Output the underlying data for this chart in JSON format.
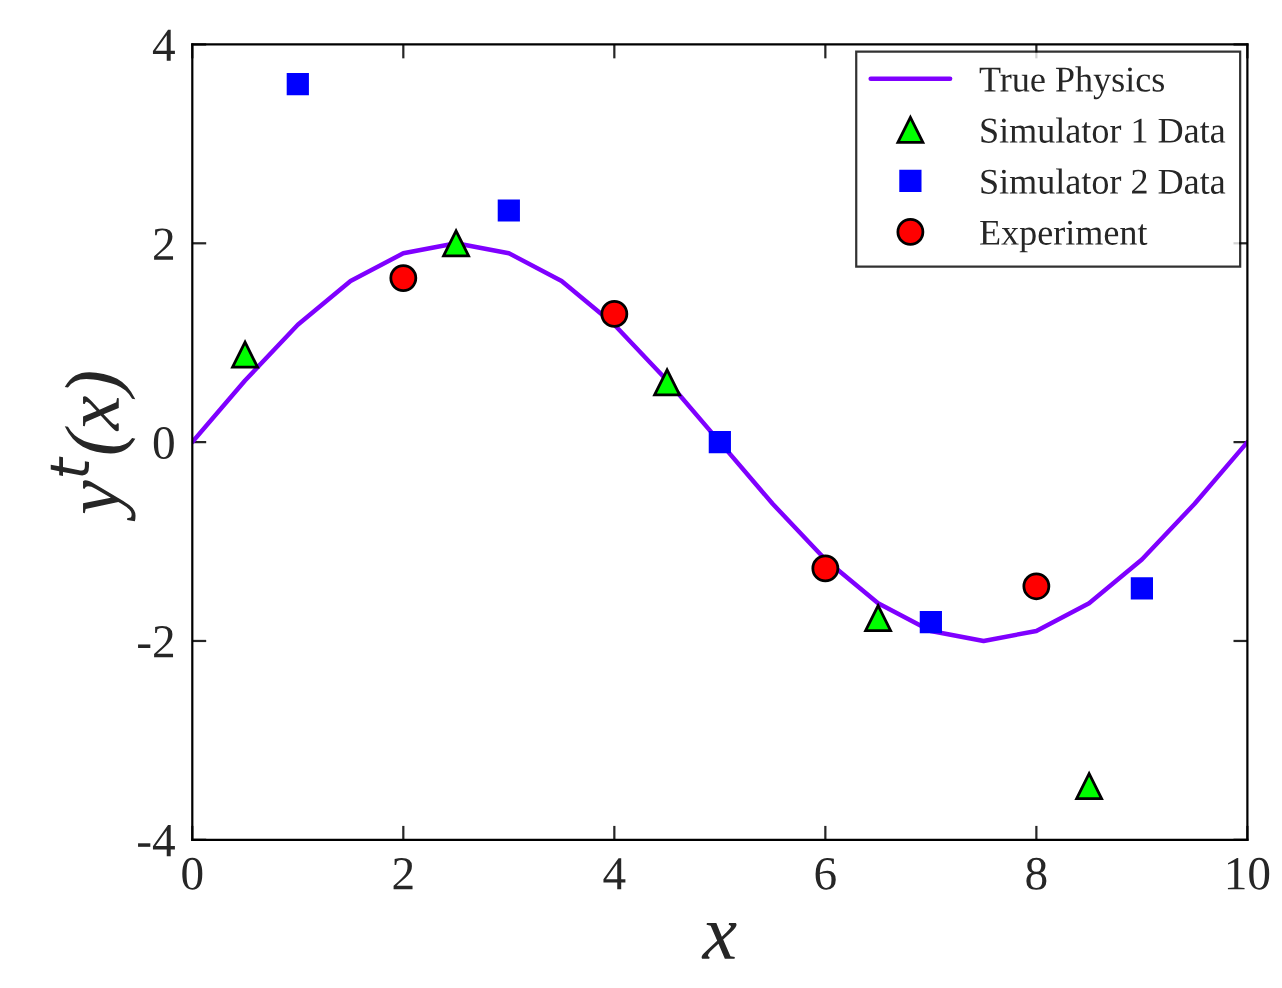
{
  "chart_data": {
    "type": "scatter",
    "xlabel": "x",
    "ylabel": "y$^{t}$(x)",
    "xlim": [
      0,
      10
    ],
    "ylim": [
      -4,
      4
    ],
    "xticks": [
      0,
      2,
      4,
      6,
      8,
      10
    ],
    "yticks": [
      -4,
      -2,
      0,
      2,
      4
    ],
    "grid": false,
    "legend": "top right",
    "series": [
      {
        "name": "True Physics",
        "type": "line",
        "color": "#7f00ff",
        "marker": "none",
        "x": [
          0,
          0.5,
          1,
          1.5,
          2,
          2.5,
          3,
          3.5,
          4,
          4.5,
          5,
          5.5,
          6,
          6.5,
          7,
          7.5,
          8,
          8.5,
          9,
          9.5,
          10
        ],
        "values": [
          0,
          0.62,
          1.18,
          1.62,
          1.9,
          2.0,
          1.9,
          1.62,
          1.18,
          0.62,
          0,
          -0.62,
          -1.18,
          -1.62,
          -1.9,
          -2.0,
          -1.9,
          -1.62,
          -1.18,
          -0.62,
          0
        ]
      },
      {
        "name": "Simulator 1 Data",
        "color": "#00ff00",
        "marker": "triangle",
        "x": [
          0.5,
          2.5,
          4.5,
          6.5,
          8.5
        ],
        "values": [
          0.88,
          2.0,
          0.6,
          -1.77,
          -3.46
        ]
      },
      {
        "name": "Simulator 2 Data",
        "color": "#0000ff",
        "marker": "square",
        "x": [
          1,
          3,
          5,
          7,
          9
        ],
        "values": [
          3.6,
          2.33,
          0.0,
          -1.81,
          -1.47
        ]
      },
      {
        "name": "Experiment",
        "color": "#ff0000",
        "marker": "circle",
        "x": [
          2,
          4,
          6,
          8
        ],
        "values": [
          1.65,
          1.29,
          -1.27,
          -1.45
        ]
      }
    ]
  }
}
